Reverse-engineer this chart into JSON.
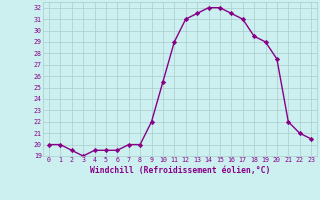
{
  "x": [
    0,
    1,
    2,
    3,
    4,
    5,
    6,
    7,
    8,
    9,
    10,
    11,
    12,
    13,
    14,
    15,
    16,
    17,
    18,
    19,
    20,
    21,
    22,
    23
  ],
  "y": [
    20,
    20,
    19.5,
    19,
    19.5,
    19.5,
    19.5,
    20,
    20,
    22,
    25.5,
    29,
    31,
    31.5,
    32,
    32,
    31.5,
    31,
    29.5,
    29,
    27.5,
    22,
    21,
    20.5
  ],
  "line_color": "#880088",
  "marker": "D",
  "marker_size": 2.2,
  "bg_color": "#ccf0f0",
  "grid_color": "#aacccc",
  "xlabel": "Windchill (Refroidissement éolien,°C)",
  "xlabel_color": "#880088",
  "tick_color": "#880088",
  "ylim": [
    19,
    32.5
  ],
  "xlim": [
    -0.5,
    23.5
  ],
  "yticks": [
    19,
    20,
    21,
    22,
    23,
    24,
    25,
    26,
    27,
    28,
    29,
    30,
    31,
    32
  ],
  "xticks": [
    0,
    1,
    2,
    3,
    4,
    5,
    6,
    7,
    8,
    9,
    10,
    11,
    12,
    13,
    14,
    15,
    16,
    17,
    18,
    19,
    20,
    21,
    22,
    23
  ]
}
